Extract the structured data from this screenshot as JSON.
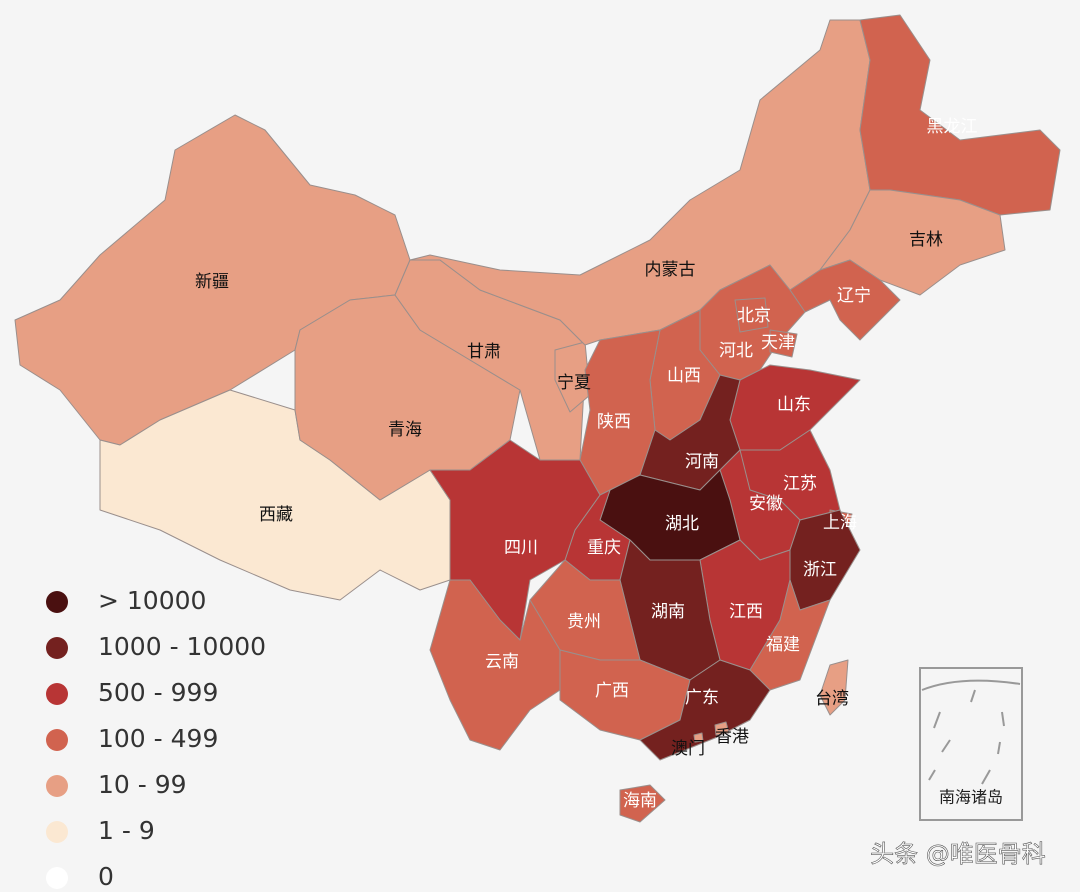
{
  "provinces": [
    {
      "name": "新疆",
      "color": "#e79f84"
    },
    {
      "name": "西藏",
      "color": "#fbe8d2"
    },
    {
      "name": "青海",
      "color": "#e79f84"
    },
    {
      "name": "甘肃",
      "color": "#e79f84"
    },
    {
      "name": "宁夏",
      "color": "#e79f84"
    },
    {
      "name": "内蒙古",
      "color": "#e79f84"
    },
    {
      "name": "黑龙江",
      "color": "#d1634f"
    },
    {
      "name": "吉林",
      "color": "#e79f84"
    },
    {
      "name": "辽宁",
      "color": "#d1634f"
    },
    {
      "name": "河北",
      "color": "#d1634f"
    },
    {
      "name": "北京",
      "color": "#d1634f"
    },
    {
      "name": "天津",
      "color": "#d1634f"
    },
    {
      "name": "山西",
      "color": "#d1634f"
    },
    {
      "name": "陕西",
      "color": "#d1634f"
    },
    {
      "name": "山东",
      "color": "#b83535"
    },
    {
      "name": "河南",
      "color": "#74211f"
    },
    {
      "name": "江苏",
      "color": "#b83535"
    },
    {
      "name": "安徽",
      "color": "#b83535"
    },
    {
      "name": "上海",
      "color": "#d1634f"
    },
    {
      "name": "湖北",
      "color": "#4a1010"
    },
    {
      "name": "重庆",
      "color": "#b83535"
    },
    {
      "name": "四川",
      "color": "#b83535"
    },
    {
      "name": "浙江",
      "color": "#74211f"
    },
    {
      "name": "江西",
      "color": "#b83535"
    },
    {
      "name": "湖南",
      "color": "#74211f"
    },
    {
      "name": "福建",
      "color": "#d1634f"
    },
    {
      "name": "贵州",
      "color": "#d1634f"
    },
    {
      "name": "云南",
      "color": "#d1634f"
    },
    {
      "name": "广西",
      "color": "#d1634f"
    },
    {
      "name": "广东",
      "color": "#74211f"
    },
    {
      "name": "香港",
      "color": "#e79f84"
    },
    {
      "name": "澳门",
      "color": "#e79f84"
    },
    {
      "name": "海南",
      "color": "#d1634f"
    },
    {
      "name": "台湾",
      "color": "#e79f84"
    }
  ],
  "legend": {
    "items": [
      {
        "label": "> 10000",
        "color": "#4a1010"
      },
      {
        "label": "1000 - 10000",
        "color": "#74211f"
      },
      {
        "label": "500 - 999",
        "color": "#b83535"
      },
      {
        "label": "100 - 499",
        "color": "#d1634f"
      },
      {
        "label": "10 - 99",
        "color": "#e79f84"
      },
      {
        "label": "1 - 9",
        "color": "#fbe8d2"
      },
      {
        "label": "0",
        "color": "#ffffff"
      }
    ]
  },
  "inset": {
    "label": "南海诸岛"
  },
  "watermark": "头条 @唯医骨科"
}
